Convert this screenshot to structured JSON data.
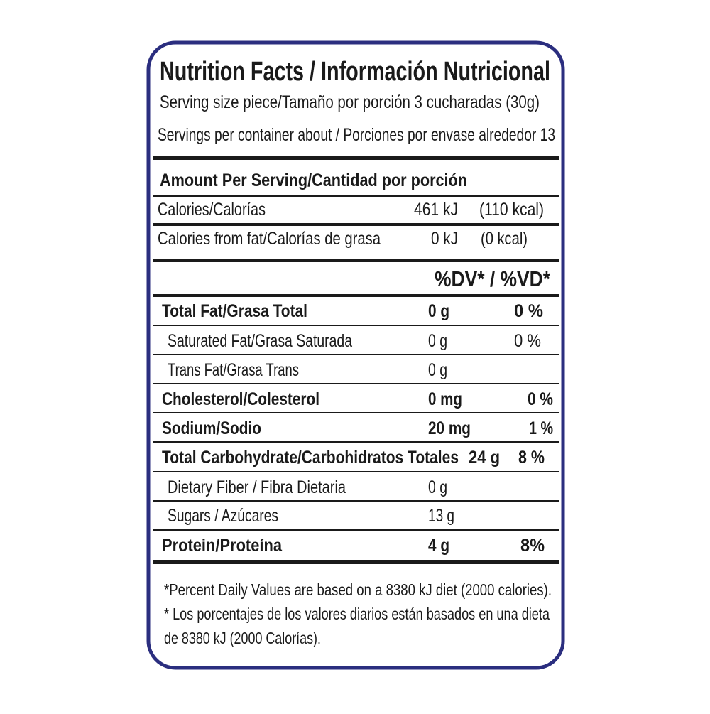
{
  "header": {
    "title": "Nutrition Facts / Información Nutricional",
    "serving_size": "Serving size piece/Tamaño por porción 3 cucharadas (30g)",
    "servings_per_container": "Servings per container about / Porciones por envase alrededor  13"
  },
  "amount_per_serving": "Amount Per Serving/Cantidad por porción",
  "calories": {
    "label": "Calories/Calorías",
    "kj": "461 kJ",
    "kcal": "(110 kcal)"
  },
  "calories_from_fat": {
    "label": "Calories from fat/Calorías de grasa",
    "kj": "0 kJ",
    "kcal": "(0 kcal)"
  },
  "dv_header": "%DV* / %VD*",
  "nutrients": [
    {
      "name": "Total Fat/Grasa Total",
      "amount": "0 g",
      "dv": "0 %"
    },
    {
      "name": "Saturated Fat/Grasa Saturada",
      "amount": "0 g",
      "dv": "0 %"
    },
    {
      "name": "Trans Fat/Grasa Trans",
      "amount": "0 g"
    },
    {
      "name": "Cholesterol/Colesterol",
      "amount": "0 mg",
      "dv": "0 %"
    },
    {
      "name": "Sodium/Sodio",
      "amount": "20 mg",
      "dv": "1 %"
    },
    {
      "name": "Total Carbohydrate/Carbohidratos Totales",
      "amount": "24 g",
      "dv": "8 %"
    },
    {
      "name": "Dietary Fiber / Fibra Dietaria",
      "amount": "0 g"
    },
    {
      "name": "Sugars / Azúcares",
      "amount": "13 g"
    },
    {
      "name": "Protein/Proteína",
      "amount": "4 g",
      "dv": "8%"
    }
  ],
  "footnote": [
    "*Percent Daily Values are based on a 8380 kJ diet (2000 calories).",
    "* Los porcentajes de los valores diarios están basados en una dieta",
    "de 8380 kJ (2000 Calorías)."
  ]
}
